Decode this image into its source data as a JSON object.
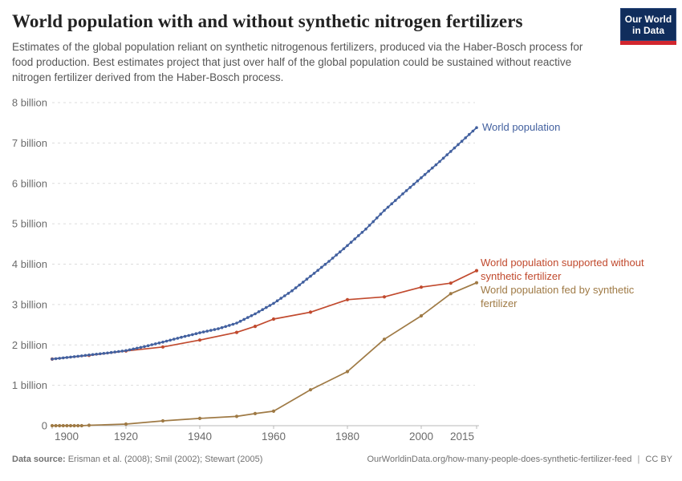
{
  "header": {
    "title": "World population with and without synthetic nitrogen fertilizers",
    "subtitle": "Estimates of the global population reliant on synthetic nitrogenous fertilizers, produced via the Haber-Bosch process for food production. Best estimates project that just over half of the global population could be sustained without reactive nitrogen fertilizer derived from the Haber-Bosch process.",
    "logo": {
      "line1": "Our World",
      "line2": "in Data",
      "bg_color": "#102d5c",
      "bar_color": "#d2262e"
    }
  },
  "footer": {
    "source_label": "Data source:",
    "source_text": "Erisman et al. (2008); Smil (2002); Stewart (2005)",
    "url_text": "OurWorldinData.org/how-many-people-does-synthetic-fertilizer-feed",
    "separator": "|",
    "license": "CC BY"
  },
  "chart_data": {
    "type": "line",
    "title": "World population with and without synthetic nitrogen fertilizers",
    "xlabel": "",
    "ylabel": "",
    "grid": "dashed-horizontal",
    "legend_position": "labels-at-line-ends",
    "x_axis": {
      "range": [
        1900,
        2015
      ],
      "ticks": [
        {
          "year": 1900,
          "label": "1900"
        },
        {
          "year": 1920,
          "label": "1920"
        },
        {
          "year": 1940,
          "label": "1940"
        },
        {
          "year": 1960,
          "label": "1960"
        },
        {
          "year": 1980,
          "label": "1980"
        },
        {
          "year": 2000,
          "label": "2000"
        },
        {
          "year": 2015,
          "label": "2015"
        }
      ]
    },
    "y_axis": {
      "range": [
        0,
        8
      ],
      "unit": "billion",
      "ticks": [
        {
          "value": 8,
          "label": "8 billion"
        },
        {
          "value": 7,
          "label": "7 billion"
        },
        {
          "value": 6,
          "label": "6 billion"
        },
        {
          "value": 5,
          "label": "5 billion"
        },
        {
          "value": 4,
          "label": "4 billion"
        },
        {
          "value": 3,
          "label": "3 billion"
        },
        {
          "value": 2,
          "label": "2 billion"
        },
        {
          "value": 1,
          "label": "1 billion"
        },
        {
          "value": 0,
          "label": "0"
        }
      ]
    },
    "series": [
      {
        "name": "World population",
        "color": "#42609f",
        "annual_markers": true,
        "points": [
          [
            1900,
            1.65
          ],
          [
            1905,
            1.7
          ],
          [
            1910,
            1.75
          ],
          [
            1915,
            1.8
          ],
          [
            1920,
            1.86
          ],
          [
            1925,
            1.96
          ],
          [
            1930,
            2.07
          ],
          [
            1935,
            2.19
          ],
          [
            1940,
            2.3
          ],
          [
            1945,
            2.4
          ],
          [
            1950,
            2.54
          ],
          [
            1955,
            2.77
          ],
          [
            1960,
            3.03
          ],
          [
            1965,
            3.34
          ],
          [
            1970,
            3.7
          ],
          [
            1975,
            4.07
          ],
          [
            1980,
            4.46
          ],
          [
            1985,
            4.87
          ],
          [
            1990,
            5.33
          ],
          [
            1995,
            5.74
          ],
          [
            2000,
            6.14
          ],
          [
            2005,
            6.54
          ],
          [
            2010,
            6.96
          ],
          [
            2015,
            7.38
          ]
        ]
      },
      {
        "name": "World population supported without synthetic fertilizer",
        "color": "#c14a2e",
        "annual_markers": false,
        "points": [
          [
            1900,
            1.65
          ],
          [
            1910,
            1.74
          ],
          [
            1920,
            1.85
          ],
          [
            1930,
            1.95
          ],
          [
            1940,
            2.12
          ],
          [
            1950,
            2.31
          ],
          [
            1955,
            2.46
          ],
          [
            1960,
            2.64
          ],
          [
            1970,
            2.81
          ],
          [
            1980,
            3.12
          ],
          [
            1990,
            3.19
          ],
          [
            2000,
            3.43
          ],
          [
            2008,
            3.53
          ],
          [
            2015,
            3.84
          ]
        ]
      },
      {
        "name": "World population fed by synthetic fertilizer",
        "color": "#9f7a45",
        "annual_markers": false,
        "points": [
          [
            1900,
            0
          ],
          [
            1901,
            0
          ],
          [
            1902,
            0
          ],
          [
            1903,
            0
          ],
          [
            1904,
            0
          ],
          [
            1905,
            0
          ],
          [
            1906,
            0
          ],
          [
            1907,
            0
          ],
          [
            1908,
            0
          ],
          [
            1910,
            0.01
          ],
          [
            1920,
            0.04
          ],
          [
            1930,
            0.12
          ],
          [
            1940,
            0.18
          ],
          [
            1950,
            0.23
          ],
          [
            1955,
            0.3
          ],
          [
            1960,
            0.36
          ],
          [
            1970,
            0.89
          ],
          [
            1980,
            1.34
          ],
          [
            1990,
            2.14
          ],
          [
            2000,
            2.72
          ],
          [
            2008,
            3.27
          ],
          [
            2015,
            3.54
          ]
        ]
      }
    ]
  }
}
